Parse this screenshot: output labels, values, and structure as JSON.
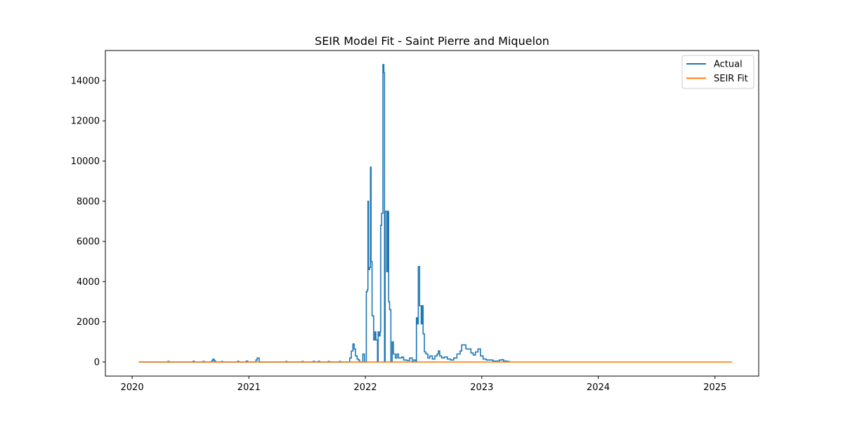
{
  "chart_data": {
    "type": "line",
    "title": "SEIR Model Fit - Saint Pierre and Miquelon",
    "xlabel": "",
    "ylabel": "",
    "x_axis_type": "date",
    "xlim": [
      "2019-10-09",
      "2025-05-18"
    ],
    "ylim": [
      -700,
      15500
    ],
    "x_ticks": [
      "2020",
      "2021",
      "2022",
      "2023",
      "2024",
      "2025"
    ],
    "y_ticks": [
      0,
      2000,
      4000,
      6000,
      8000,
      10000,
      12000,
      14000
    ],
    "grid": false,
    "legend_position": "top-right",
    "series": [
      {
        "name": "Actual",
        "color": "#1f77b4",
        "step": true,
        "points": [
          [
            "2020-01-22",
            0
          ],
          [
            "2020-04-20",
            0
          ],
          [
            "2020-04-22",
            30
          ],
          [
            "2020-04-26",
            0
          ],
          [
            "2020-07-08",
            0
          ],
          [
            "2020-07-10",
            40
          ],
          [
            "2020-07-14",
            0
          ],
          [
            "2020-08-08",
            0
          ],
          [
            "2020-08-10",
            30
          ],
          [
            "2020-08-14",
            0
          ],
          [
            "2020-09-05",
            0
          ],
          [
            "2020-09-07",
            80
          ],
          [
            "2020-09-10",
            140
          ],
          [
            "2020-09-14",
            60
          ],
          [
            "2020-09-18",
            0
          ],
          [
            "2020-10-05",
            0
          ],
          [
            "2020-10-07",
            30
          ],
          [
            "2020-10-10",
            0
          ],
          [
            "2020-11-25",
            0
          ],
          [
            "2020-11-27",
            40
          ],
          [
            "2020-11-30",
            0
          ],
          [
            "2020-12-22",
            0
          ],
          [
            "2020-12-24",
            50
          ],
          [
            "2020-12-28",
            0
          ],
          [
            "2021-01-20",
            0
          ],
          [
            "2021-01-23",
            100
          ],
          [
            "2021-01-27",
            200
          ],
          [
            "2021-02-02",
            0
          ],
          [
            "2021-04-25",
            0
          ],
          [
            "2021-04-27",
            30
          ],
          [
            "2021-04-30",
            0
          ],
          [
            "2021-06-15",
            0
          ],
          [
            "2021-06-17",
            30
          ],
          [
            "2021-06-20",
            0
          ],
          [
            "2021-07-20",
            0
          ],
          [
            "2021-07-22",
            40
          ],
          [
            "2021-07-25",
            0
          ],
          [
            "2021-08-05",
            0
          ],
          [
            "2021-08-07",
            40
          ],
          [
            "2021-08-10",
            0
          ],
          [
            "2021-09-05",
            0
          ],
          [
            "2021-09-07",
            30
          ],
          [
            "2021-09-10",
            0
          ],
          [
            "2021-10-10",
            0
          ],
          [
            "2021-10-12",
            30
          ],
          [
            "2021-10-15",
            0
          ],
          [
            "2021-11-10",
            0
          ],
          [
            "2021-11-13",
            200
          ],
          [
            "2021-11-18",
            550
          ],
          [
            "2021-11-23",
            900
          ],
          [
            "2021-11-27",
            650
          ],
          [
            "2021-12-01",
            300
          ],
          [
            "2021-12-06",
            150
          ],
          [
            "2021-12-10",
            100
          ],
          [
            "2021-12-14",
            0
          ],
          [
            "2021-12-22",
            0
          ],
          [
            "2021-12-24",
            400
          ],
          [
            "2021-12-29",
            0
          ],
          [
            "2022-01-03",
            0
          ],
          [
            "2022-01-04",
            3500
          ],
          [
            "2022-01-07",
            3600
          ],
          [
            "2022-01-09",
            8000
          ],
          [
            "2022-01-11",
            4600
          ],
          [
            "2022-01-14",
            4700
          ],
          [
            "2022-01-17",
            9700
          ],
          [
            "2022-01-19",
            5000
          ],
          [
            "2022-01-22",
            2300
          ],
          [
            "2022-01-27",
            1100
          ],
          [
            "2022-01-31",
            1500
          ],
          [
            "2022-02-03",
            1100
          ],
          [
            "2022-02-08",
            0
          ],
          [
            "2022-02-10",
            1500
          ],
          [
            "2022-02-13",
            1300
          ],
          [
            "2022-02-16",
            1500
          ],
          [
            "2022-02-18",
            6800
          ],
          [
            "2022-02-21",
            7400
          ],
          [
            "2022-02-25",
            14800
          ],
          [
            "2022-02-28",
            14400
          ],
          [
            "2022-03-02",
            0
          ],
          [
            "2022-03-04",
            7500
          ],
          [
            "2022-03-09",
            4500
          ],
          [
            "2022-03-12",
            7500
          ],
          [
            "2022-03-15",
            3000
          ],
          [
            "2022-03-18",
            2600
          ],
          [
            "2022-03-22",
            0
          ],
          [
            "2022-03-26",
            1000
          ],
          [
            "2022-03-30",
            400
          ],
          [
            "2022-04-05",
            200
          ],
          [
            "2022-04-10",
            400
          ],
          [
            "2022-04-15",
            200
          ],
          [
            "2022-04-20",
            200
          ],
          [
            "2022-04-25",
            250
          ],
          [
            "2022-05-01",
            100
          ],
          [
            "2022-05-10",
            80
          ],
          [
            "2022-05-20",
            200
          ],
          [
            "2022-05-28",
            0
          ],
          [
            "2022-06-02",
            100
          ],
          [
            "2022-06-08",
            0
          ],
          [
            "2022-06-10",
            2200
          ],
          [
            "2022-06-13",
            1900
          ],
          [
            "2022-06-16",
            4750
          ],
          [
            "2022-06-20",
            2800
          ],
          [
            "2022-06-25",
            1900
          ],
          [
            "2022-06-28",
            2800
          ],
          [
            "2022-07-01",
            1400
          ],
          [
            "2022-07-05",
            500
          ],
          [
            "2022-07-10",
            400
          ],
          [
            "2022-07-16",
            200
          ],
          [
            "2022-07-22",
            300
          ],
          [
            "2022-07-30",
            150
          ],
          [
            "2022-08-07",
            300
          ],
          [
            "2022-08-14",
            400
          ],
          [
            "2022-08-18",
            550
          ],
          [
            "2022-08-22",
            300
          ],
          [
            "2022-08-28",
            200
          ],
          [
            "2022-09-05",
            250
          ],
          [
            "2022-09-15",
            150
          ],
          [
            "2022-09-25",
            100
          ],
          [
            "2022-10-05",
            200
          ],
          [
            "2022-10-15",
            400
          ],
          [
            "2022-10-25",
            550
          ],
          [
            "2022-10-30",
            850
          ],
          [
            "2022-11-05",
            850
          ],
          [
            "2022-11-12",
            650
          ],
          [
            "2022-11-20",
            650
          ],
          [
            "2022-11-28",
            450
          ],
          [
            "2022-12-05",
            350
          ],
          [
            "2022-12-12",
            500
          ],
          [
            "2022-12-20",
            650
          ],
          [
            "2022-12-28",
            300
          ],
          [
            "2023-01-05",
            150
          ],
          [
            "2023-01-15",
            100
          ],
          [
            "2023-01-25",
            100
          ],
          [
            "2023-02-05",
            50
          ],
          [
            "2023-02-15",
            50
          ],
          [
            "2023-02-25",
            100
          ],
          [
            "2023-03-05",
            120
          ],
          [
            "2023-03-10",
            50
          ],
          [
            "2023-03-20",
            30
          ],
          [
            "2023-03-28",
            0
          ]
        ]
      },
      {
        "name": "SEIR Fit",
        "color": "#ff7f0e",
        "step": false,
        "points": [
          [
            "2020-01-22",
            0
          ],
          [
            "2025-02-24",
            0
          ]
        ]
      }
    ]
  }
}
